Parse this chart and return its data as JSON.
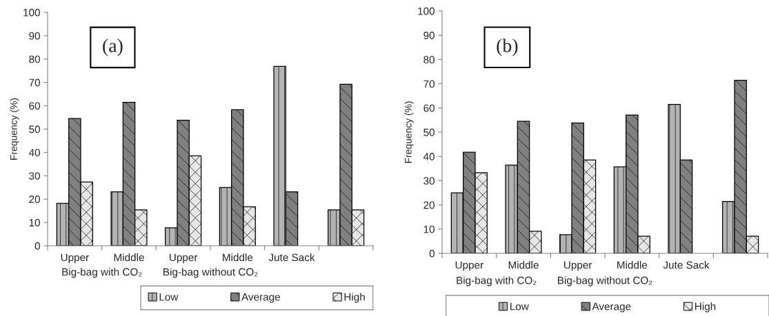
{
  "chart_data": [
    {
      "type": "bar",
      "title": "(a)",
      "ylabel": "Frequency (%)",
      "categories": [
        "Upper",
        "Middle",
        "Upper",
        "Middle",
        "Jute Sack",
        null
      ],
      "annotations": [
        "Big-bag with CO₂",
        "Big-bag without CO₂"
      ],
      "series": [
        {
          "name": "Low",
          "color": "#b3b3b3",
          "values": [
            18.2,
            23.1,
            7.7,
            25.0,
            76.9,
            15.4
          ]
        },
        {
          "name": "Average",
          "color": "#808080",
          "values": [
            54.5,
            61.5,
            53.8,
            58.3,
            23.1,
            69.2
          ]
        },
        {
          "name": "High",
          "color": "#e6e6e6",
          "values": [
            27.3,
            15.4,
            38.5,
            16.7,
            null,
            15.4
          ]
        }
      ],
      "ylim": [
        0,
        100
      ],
      "yticks": [
        0,
        10,
        20,
        30,
        40,
        50,
        60,
        70,
        80,
        90,
        100
      ],
      "grid": false,
      "legend": "bottom"
    },
    {
      "type": "bar",
      "title": "(b)",
      "ylabel": "Frequency (%)",
      "categories": [
        "Upper",
        "Middle",
        "Upper",
        "Middle",
        "Jute Sack",
        null
      ],
      "annotations": [
        "Big-bag with CO₂",
        "Big-bag without CO₂"
      ],
      "series": [
        {
          "name": "Low",
          "color": "#b3b3b3",
          "values": [
            25.0,
            36.4,
            7.7,
            35.7,
            61.5,
            21.4
          ]
        },
        {
          "name": "Average",
          "color": "#808080",
          "values": [
            41.7,
            54.5,
            53.8,
            57.1,
            38.5,
            71.4
          ]
        },
        {
          "name": "High",
          "color": "#e6e6e6",
          "values": [
            33.3,
            9.1,
            38.5,
            7.1,
            null,
            7.1
          ]
        }
      ],
      "ylim": [
        0,
        100
      ],
      "yticks": [
        0,
        10,
        20,
        30,
        40,
        50,
        60,
        70,
        80,
        90,
        100
      ],
      "grid": false,
      "legend": "bottom"
    }
  ]
}
